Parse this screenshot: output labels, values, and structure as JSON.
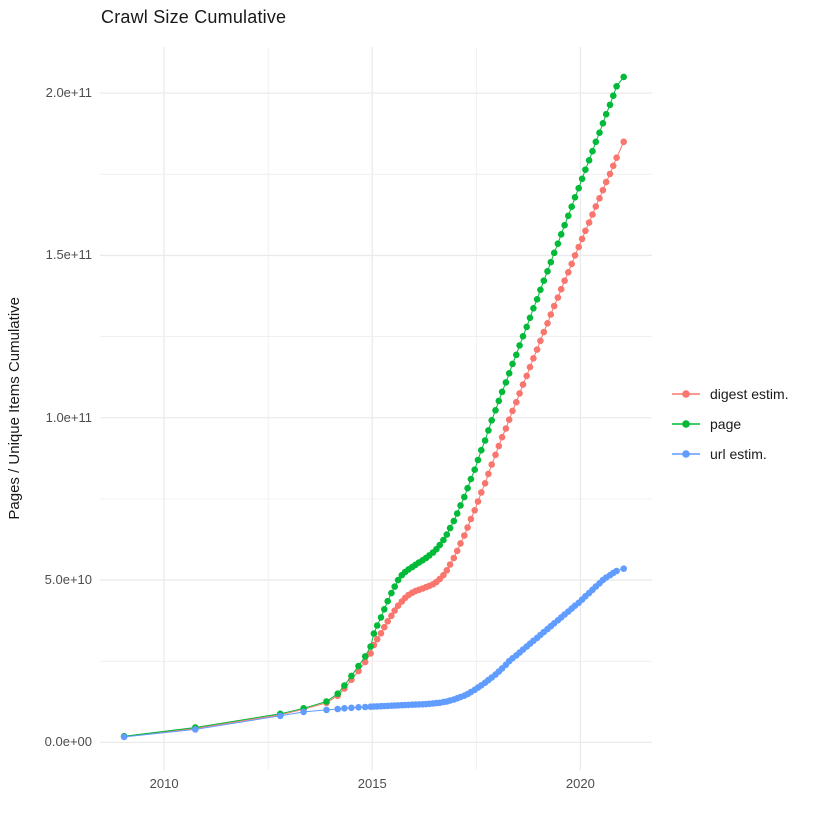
{
  "title": "Crawl Size Cumulative",
  "y_axis_title": "Pages / Unique Items Cumulative",
  "chart_data": {
    "type": "line",
    "title": "Crawl Size Cumulative",
    "xlabel": "",
    "ylabel": "Pages / Unique Items Cumulative",
    "value_unit": "billions (1e9) of pages / unique items",
    "xlim": [
      2008.46,
      2021.72
    ],
    "ylim_billions": [
      -8.5,
      214.2
    ],
    "grid": "major and minor, light grey on white",
    "legend_position": "right",
    "x_ticks": [
      {
        "v": 2010,
        "label": "2010"
      },
      {
        "v": 2015,
        "label": "2015"
      },
      {
        "v": 2020,
        "label": "2020"
      }
    ],
    "x_minor_ticks": [
      2012.5,
      2017.5
    ],
    "y_ticks": [
      {
        "v": 0,
        "label": "0.0e+00"
      },
      {
        "v": 50,
        "label": "5.0e+10"
      },
      {
        "v": 100,
        "label": "1.0e+11"
      },
      {
        "v": 150,
        "label": "1.5e+11"
      },
      {
        "v": 200,
        "label": "2.0e+11"
      }
    ],
    "y_minor_ticks": [
      25,
      75,
      125,
      175
    ],
    "series": [
      {
        "name": "digest estim.",
        "color": "#f8766d",
        "points_year_billions": [
          [
            2009.04,
            1.8
          ],
          [
            2010.75,
            4.3
          ],
          [
            2012.79,
            8.5
          ],
          [
            2013.35,
            10.2
          ],
          [
            2013.9,
            12.2
          ],
          [
            2014.17,
            14.4
          ],
          [
            2014.33,
            16.6
          ],
          [
            2014.5,
            19.3
          ],
          [
            2014.67,
            22.0
          ],
          [
            2014.83,
            24.8
          ],
          [
            2014.96,
            27.4
          ],
          [
            2015.04,
            30.0
          ],
          [
            2015.12,
            31.8
          ],
          [
            2015.21,
            33.6
          ],
          [
            2015.29,
            35.5
          ],
          [
            2015.37,
            37.3
          ],
          [
            2015.46,
            39.0
          ],
          [
            2015.54,
            40.6
          ],
          [
            2015.62,
            42.1
          ],
          [
            2015.71,
            43.4
          ],
          [
            2015.79,
            44.5
          ],
          [
            2015.87,
            45.4
          ],
          [
            2015.96,
            46.1
          ],
          [
            2016.04,
            46.6
          ],
          [
            2016.12,
            47.0
          ],
          [
            2016.21,
            47.4
          ],
          [
            2016.29,
            47.8
          ],
          [
            2016.37,
            48.2
          ],
          [
            2016.46,
            48.7
          ],
          [
            2016.54,
            49.4
          ],
          [
            2016.62,
            50.3
          ],
          [
            2016.71,
            51.5
          ],
          [
            2016.79,
            53.0
          ],
          [
            2016.87,
            54.8
          ],
          [
            2016.96,
            56.8
          ],
          [
            2017.04,
            59.0
          ],
          [
            2017.12,
            61.3
          ],
          [
            2017.21,
            63.7
          ],
          [
            2017.29,
            66.2
          ],
          [
            2017.37,
            68.8
          ],
          [
            2017.46,
            71.5
          ],
          [
            2017.54,
            74.2
          ],
          [
            2017.62,
            77.0
          ],
          [
            2017.71,
            79.8
          ],
          [
            2017.79,
            82.7
          ],
          [
            2017.87,
            85.6
          ],
          [
            2017.96,
            88.6
          ],
          [
            2018.04,
            91.3
          ],
          [
            2018.12,
            94.0
          ],
          [
            2018.21,
            96.7
          ],
          [
            2018.29,
            99.4
          ],
          [
            2018.37,
            102.1
          ],
          [
            2018.46,
            104.8
          ],
          [
            2018.54,
            107.5
          ],
          [
            2018.62,
            110.2
          ],
          [
            2018.71,
            112.9
          ],
          [
            2018.79,
            115.6
          ],
          [
            2018.87,
            118.3
          ],
          [
            2018.96,
            121.0
          ],
          [
            2019.04,
            123.7
          ],
          [
            2019.12,
            126.4
          ],
          [
            2019.21,
            129.1
          ],
          [
            2019.29,
            131.8
          ],
          [
            2019.37,
            134.4
          ],
          [
            2019.46,
            137.0
          ],
          [
            2019.54,
            139.6
          ],
          [
            2019.62,
            142.2
          ],
          [
            2019.71,
            144.8
          ],
          [
            2019.79,
            147.4
          ],
          [
            2019.87,
            150.0
          ],
          [
            2019.96,
            152.6
          ],
          [
            2020.04,
            155.1
          ],
          [
            2020.12,
            157.6
          ],
          [
            2020.21,
            160.1
          ],
          [
            2020.29,
            162.6
          ],
          [
            2020.37,
            165.1
          ],
          [
            2020.46,
            167.6
          ],
          [
            2020.54,
            170.1
          ],
          [
            2020.62,
            172.6
          ],
          [
            2020.71,
            175.1
          ],
          [
            2020.79,
            177.6
          ],
          [
            2020.87,
            180.1
          ],
          [
            2021.04,
            185.0
          ]
        ]
      },
      {
        "name": "page",
        "color": "#00ba38",
        "points_year_billions": [
          [
            2009.04,
            1.9
          ],
          [
            2010.75,
            4.6
          ],
          [
            2012.79,
            8.8
          ],
          [
            2013.35,
            10.5
          ],
          [
            2013.9,
            12.6
          ],
          [
            2014.17,
            15.0
          ],
          [
            2014.33,
            17.5
          ],
          [
            2014.5,
            20.5
          ],
          [
            2014.67,
            23.5
          ],
          [
            2014.83,
            26.5
          ],
          [
            2014.96,
            29.5
          ],
          [
            2015.04,
            33.5
          ],
          [
            2015.12,
            36.0
          ],
          [
            2015.21,
            38.5
          ],
          [
            2015.29,
            41.0
          ],
          [
            2015.37,
            43.5
          ],
          [
            2015.46,
            46.0
          ],
          [
            2015.54,
            48.0
          ],
          [
            2015.62,
            50.0
          ],
          [
            2015.71,
            51.5
          ],
          [
            2015.79,
            52.5
          ],
          [
            2015.87,
            53.3
          ],
          [
            2015.96,
            54.0
          ],
          [
            2016.04,
            54.7
          ],
          [
            2016.12,
            55.4
          ],
          [
            2016.21,
            56.1
          ],
          [
            2016.29,
            56.8
          ],
          [
            2016.37,
            57.6
          ],
          [
            2016.46,
            58.5
          ],
          [
            2016.54,
            59.5
          ],
          [
            2016.62,
            60.8
          ],
          [
            2016.71,
            62.3
          ],
          [
            2016.79,
            64.0
          ],
          [
            2016.87,
            66.0
          ],
          [
            2016.96,
            68.2
          ],
          [
            2017.04,
            70.5
          ],
          [
            2017.12,
            73.0
          ],
          [
            2017.21,
            75.6
          ],
          [
            2017.29,
            78.3
          ],
          [
            2017.37,
            81.1
          ],
          [
            2017.46,
            84.0
          ],
          [
            2017.54,
            87.0
          ],
          [
            2017.62,
            90.0
          ],
          [
            2017.71,
            93.0
          ],
          [
            2017.79,
            96.1
          ],
          [
            2017.87,
            99.2
          ],
          [
            2017.96,
            102.3
          ],
          [
            2018.04,
            105.2
          ],
          [
            2018.12,
            108.0
          ],
          [
            2018.21,
            110.9
          ],
          [
            2018.29,
            113.7
          ],
          [
            2018.37,
            116.6
          ],
          [
            2018.46,
            119.4
          ],
          [
            2018.54,
            122.3
          ],
          [
            2018.62,
            125.1
          ],
          [
            2018.71,
            128.0
          ],
          [
            2018.79,
            130.8
          ],
          [
            2018.87,
            133.7
          ],
          [
            2018.96,
            136.5
          ],
          [
            2019.04,
            139.4
          ],
          [
            2019.12,
            142.2
          ],
          [
            2019.21,
            145.1
          ],
          [
            2019.29,
            147.9
          ],
          [
            2019.37,
            150.8
          ],
          [
            2019.46,
            153.6
          ],
          [
            2019.54,
            156.5
          ],
          [
            2019.62,
            159.3
          ],
          [
            2019.71,
            162.2
          ],
          [
            2019.79,
            165.0
          ],
          [
            2019.87,
            167.9
          ],
          [
            2019.96,
            170.7
          ],
          [
            2020.04,
            173.6
          ],
          [
            2020.12,
            176.4
          ],
          [
            2020.21,
            179.3
          ],
          [
            2020.29,
            182.1
          ],
          [
            2020.37,
            185.0
          ],
          [
            2020.46,
            187.8
          ],
          [
            2020.54,
            190.7
          ],
          [
            2020.62,
            193.5
          ],
          [
            2020.71,
            196.4
          ],
          [
            2020.79,
            199.2
          ],
          [
            2020.87,
            202.1
          ],
          [
            2021.04,
            205.0
          ]
        ]
      },
      {
        "name": "url estim.",
        "color": "#619cff",
        "points_year_billions": [
          [
            2009.04,
            1.7
          ],
          [
            2010.75,
            4.0
          ],
          [
            2012.79,
            8.2
          ],
          [
            2013.35,
            9.4
          ],
          [
            2013.9,
            10.0
          ],
          [
            2014.17,
            10.3
          ],
          [
            2014.33,
            10.5
          ],
          [
            2014.5,
            10.65
          ],
          [
            2014.67,
            10.8
          ],
          [
            2014.83,
            10.9
          ],
          [
            2014.96,
            11.0
          ],
          [
            2015.04,
            11.05
          ],
          [
            2015.12,
            11.1
          ],
          [
            2015.21,
            11.15
          ],
          [
            2015.29,
            11.2
          ],
          [
            2015.37,
            11.25
          ],
          [
            2015.46,
            11.3
          ],
          [
            2015.54,
            11.35
          ],
          [
            2015.62,
            11.4
          ],
          [
            2015.71,
            11.45
          ],
          [
            2015.79,
            11.5
          ],
          [
            2015.87,
            11.55
          ],
          [
            2015.96,
            11.6
          ],
          [
            2016.04,
            11.65
          ],
          [
            2016.12,
            11.7
          ],
          [
            2016.21,
            11.75
          ],
          [
            2016.29,
            11.8
          ],
          [
            2016.37,
            11.9
          ],
          [
            2016.46,
            12.0
          ],
          [
            2016.54,
            12.1
          ],
          [
            2016.62,
            12.2
          ],
          [
            2016.71,
            12.4
          ],
          [
            2016.79,
            12.6
          ],
          [
            2016.87,
            12.9
          ],
          [
            2016.96,
            13.2
          ],
          [
            2017.04,
            13.6
          ],
          [
            2017.12,
            14.0
          ],
          [
            2017.21,
            14.4
          ],
          [
            2017.29,
            14.9
          ],
          [
            2017.37,
            15.5
          ],
          [
            2017.46,
            16.2
          ],
          [
            2017.54,
            16.9
          ],
          [
            2017.62,
            17.6
          ],
          [
            2017.71,
            18.4
          ],
          [
            2017.79,
            19.2
          ],
          [
            2017.87,
            20.0
          ],
          [
            2017.96,
            20.9
          ],
          [
            2018.04,
            21.8
          ],
          [
            2018.12,
            22.8
          ],
          [
            2018.21,
            23.9
          ],
          [
            2018.29,
            25.0
          ],
          [
            2018.37,
            25.9
          ],
          [
            2018.46,
            26.8
          ],
          [
            2018.54,
            27.7
          ],
          [
            2018.62,
            28.6
          ],
          [
            2018.71,
            29.5
          ],
          [
            2018.79,
            30.4
          ],
          [
            2018.87,
            31.3
          ],
          [
            2018.96,
            32.2
          ],
          [
            2019.04,
            33.1
          ],
          [
            2019.12,
            34.0
          ],
          [
            2019.21,
            34.9
          ],
          [
            2019.29,
            35.8
          ],
          [
            2019.37,
            36.7
          ],
          [
            2019.46,
            37.6
          ],
          [
            2019.54,
            38.5
          ],
          [
            2019.62,
            39.4
          ],
          [
            2019.71,
            40.3
          ],
          [
            2019.79,
            41.2
          ],
          [
            2019.87,
            42.1
          ],
          [
            2019.96,
            43.0
          ],
          [
            2020.04,
            44.0
          ],
          [
            2020.12,
            45.0
          ],
          [
            2020.21,
            46.0
          ],
          [
            2020.29,
            47.0
          ],
          [
            2020.37,
            48.0
          ],
          [
            2020.46,
            49.0
          ],
          [
            2020.54,
            50.0
          ],
          [
            2020.62,
            50.8
          ],
          [
            2020.71,
            51.5
          ],
          [
            2020.79,
            52.2
          ],
          [
            2020.87,
            52.8
          ],
          [
            2021.04,
            53.5
          ]
        ]
      }
    ],
    "style": {
      "grid_color": "#ebebeb",
      "tick_label_color": "#4d4d4d",
      "text_color": "#1a1a1a",
      "point_radius_px": 3.3
    }
  }
}
